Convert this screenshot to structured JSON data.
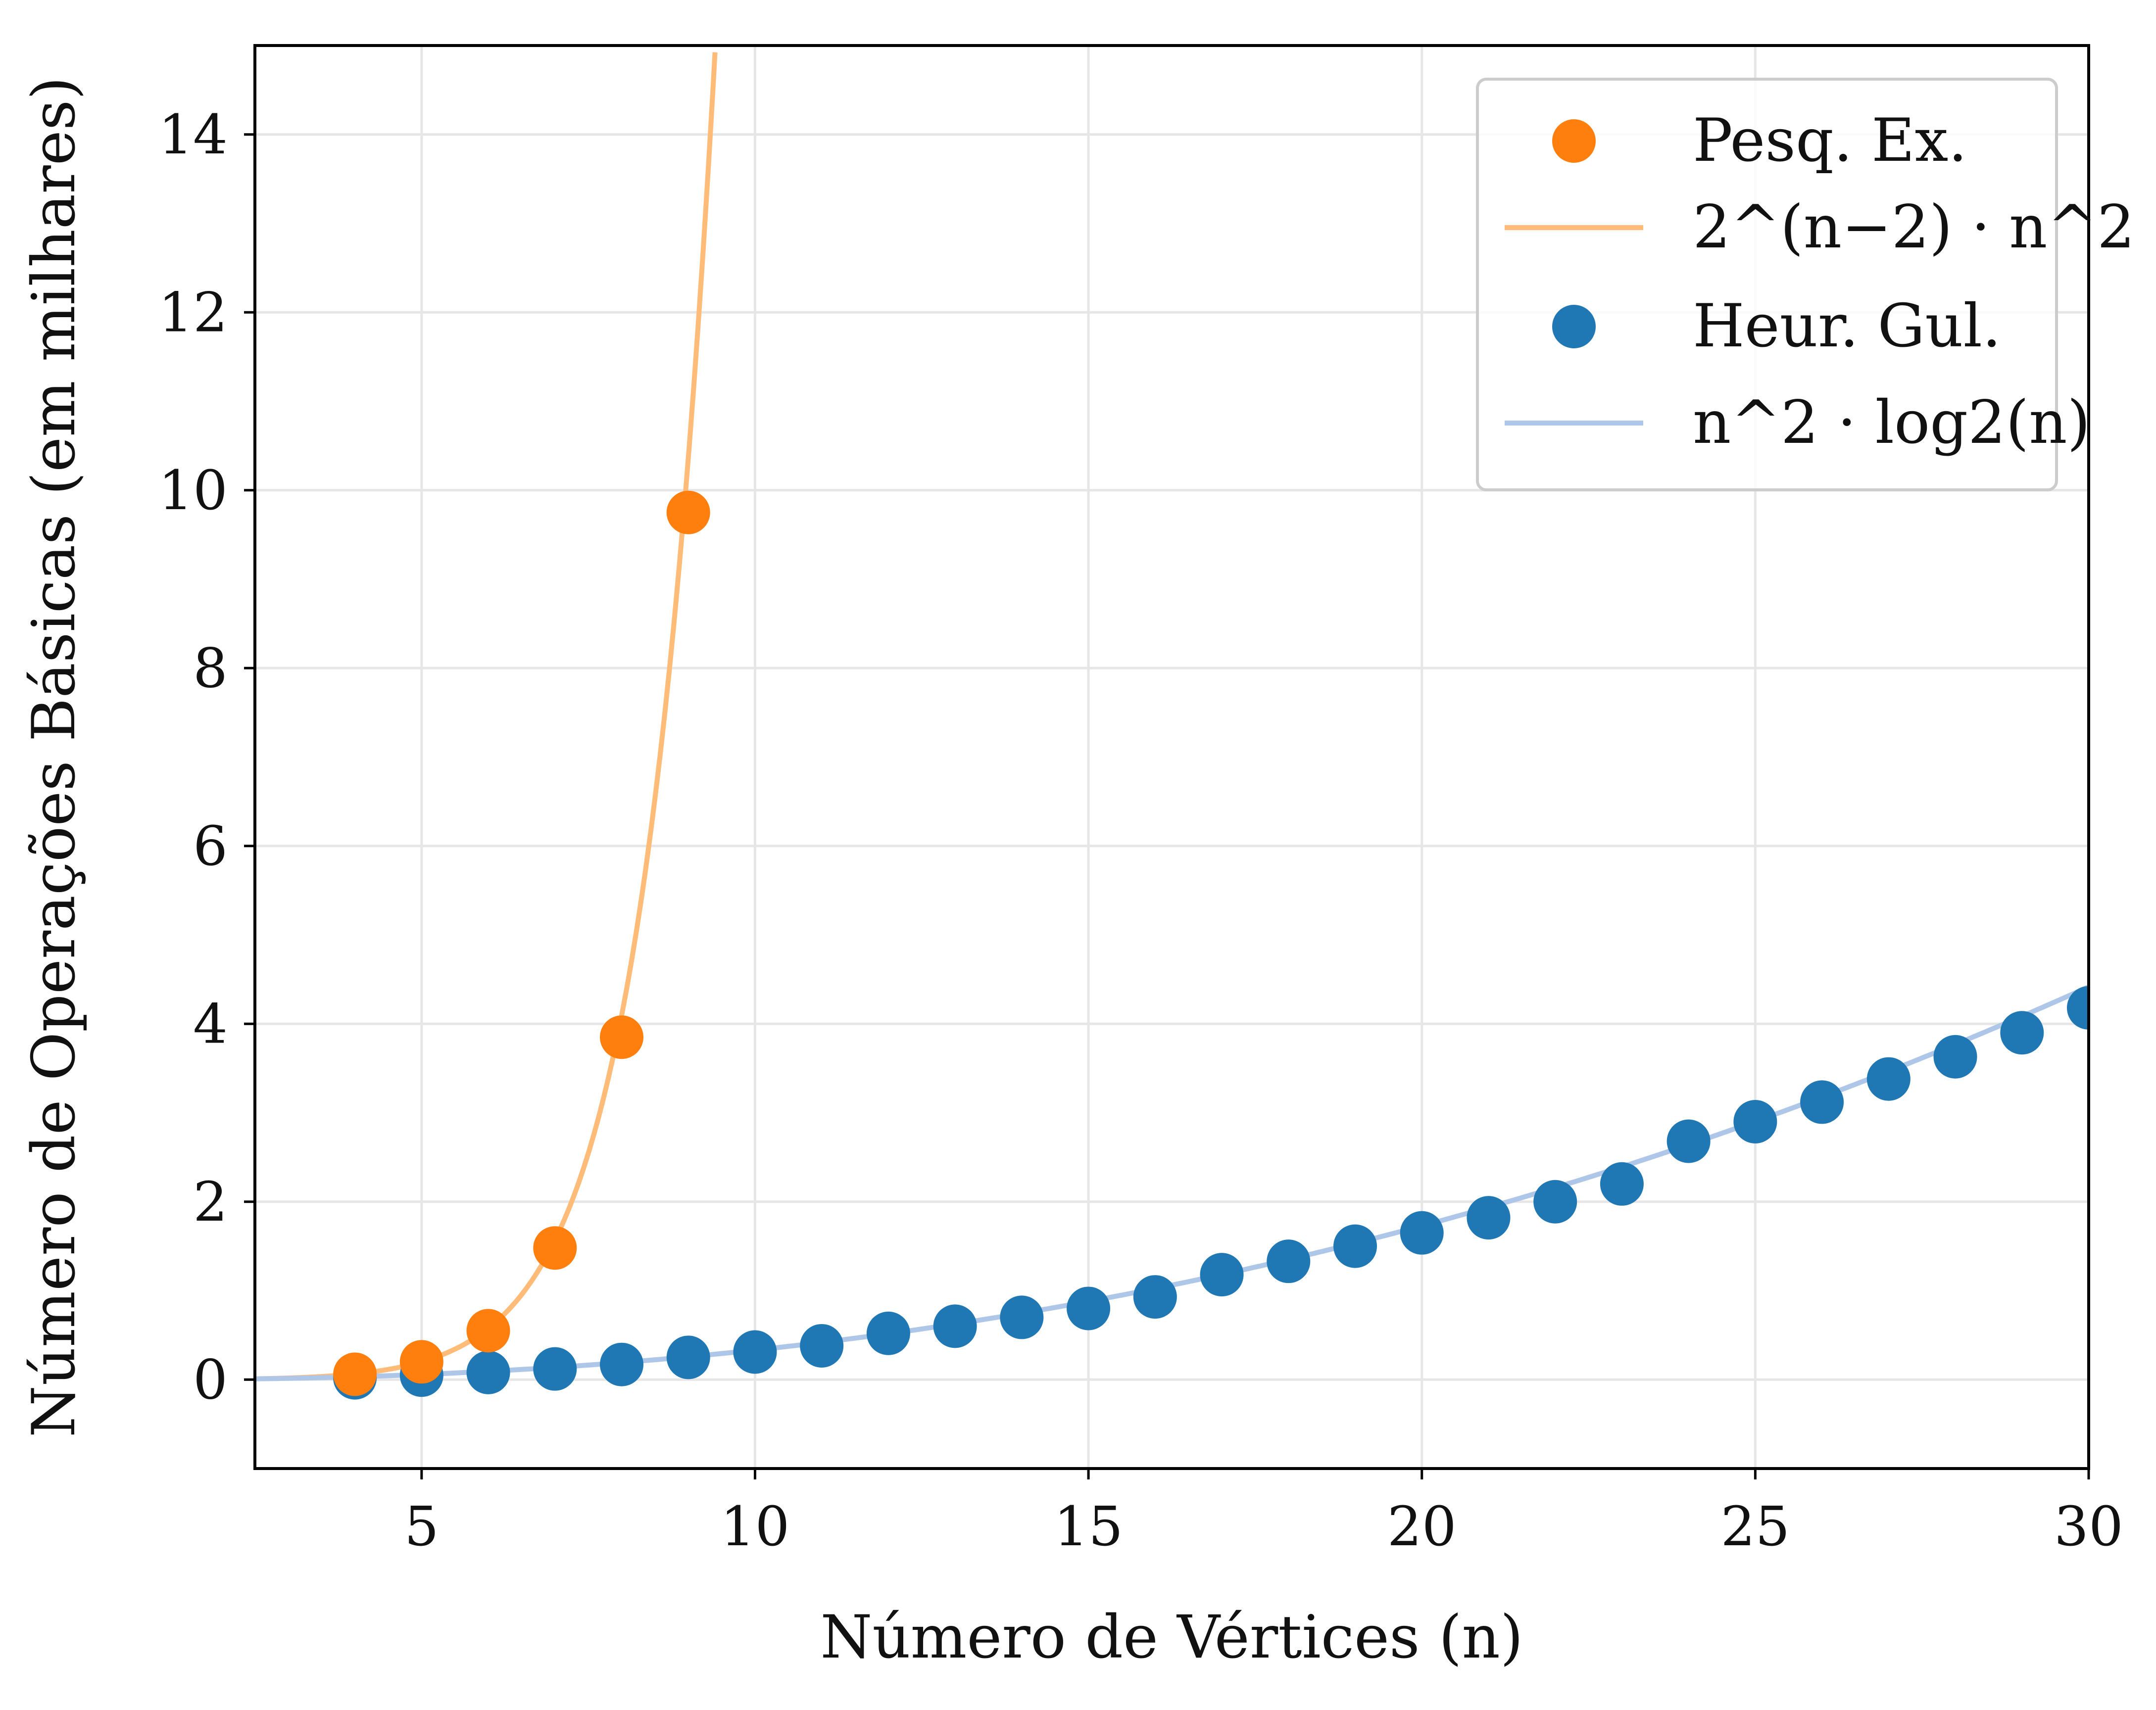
{
  "chart_data": {
    "type": "scatter",
    "title": "",
    "xlabel": "Número de Vértices (n)",
    "ylabel": "Número de Operações Básicas (em milhares)",
    "xlim": [
      2.5,
      30
    ],
    "ylim": [
      -1,
      15
    ],
    "xticks": [
      5,
      10,
      15,
      20,
      25,
      30
    ],
    "yticks": [
      0,
      2,
      4,
      6,
      8,
      10,
      12,
      14
    ],
    "grid": true,
    "legend_position": "top-right",
    "series": [
      {
        "name": "Pesq. Ex.",
        "kind": "scatter",
        "color": "#ff7f0e",
        "x": [
          4,
          5,
          6,
          7,
          8,
          9
        ],
        "y": [
          0.06,
          0.2,
          0.55,
          1.48,
          3.85,
          9.75
        ]
      },
      {
        "name": "2^(n−2) · n^2",
        "kind": "line",
        "color": "#ffbb78",
        "formula": "exp",
        "x_range": [
          2.5,
          9.4
        ],
        "scale": 0.001
      },
      {
        "name": "Heur. Gul.",
        "kind": "scatter",
        "color": "#1f77b4",
        "x": [
          4,
          5,
          6,
          7,
          8,
          9,
          10,
          11,
          12,
          13,
          14,
          15,
          16,
          17,
          18,
          19,
          20,
          21,
          22,
          23,
          24,
          25,
          26,
          27,
          28,
          29,
          30
        ],
        "y": [
          0.02,
          0.05,
          0.08,
          0.12,
          0.17,
          0.25,
          0.31,
          0.38,
          0.52,
          0.6,
          0.7,
          0.8,
          0.93,
          1.18,
          1.33,
          1.5,
          1.65,
          1.82,
          2.0,
          2.2,
          2.68,
          2.9,
          3.12,
          3.38,
          3.63,
          3.9,
          4.18
        ]
      },
      {
        "name": "n^2 · log2(n)",
        "kind": "line",
        "color": "#aec7e8",
        "formula": "nlog",
        "x_range": [
          2.5,
          30
        ],
        "scale": 0.001
      }
    ]
  }
}
